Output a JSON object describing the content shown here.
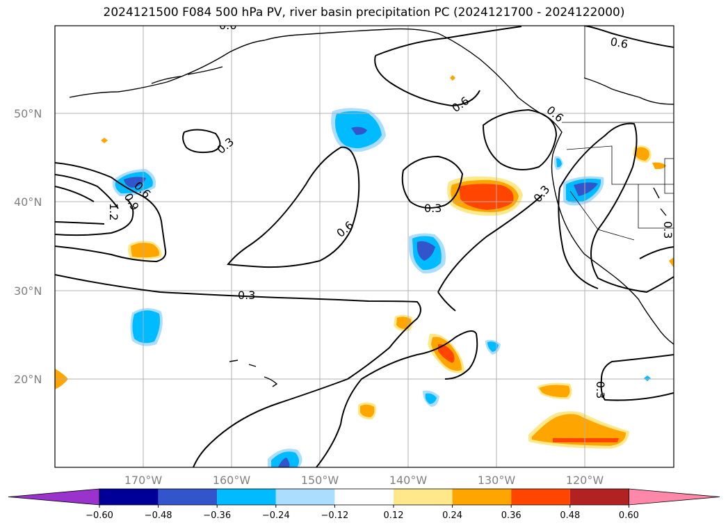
{
  "title": "2024121500 F084 500 hPa PV, river basin precipitation PC (2024121700 - 2024122000)",
  "map": {
    "lon_range": [
      -180,
      -110
    ],
    "lat_range": [
      10,
      60
    ],
    "lat_ticks": [
      {
        "lat": 50,
        "label": "50°N"
      },
      {
        "lat": 40,
        "label": "40°N"
      },
      {
        "lat": 30,
        "label": "30°N"
      },
      {
        "lat": 20,
        "label": "20°N"
      }
    ],
    "lon_ticks": [
      {
        "lon": -170,
        "label": "170°W"
      },
      {
        "lon": -160,
        "label": "160°W"
      },
      {
        "lon": -150,
        "label": "150°W"
      },
      {
        "lon": -140,
        "label": "140°W"
      },
      {
        "lon": -130,
        "label": "130°W"
      },
      {
        "lon": -120,
        "label": "120°W"
      }
    ],
    "gridlines": true,
    "contour_labels": [
      "0.3",
      "0.6",
      "0.9",
      "1.2"
    ]
  },
  "colorbar": {
    "ticks": [
      "−0.60",
      "−0.48",
      "−0.36",
      "−0.24",
      "−0.12",
      "0.12",
      "0.24",
      "0.36",
      "0.48",
      "0.60"
    ],
    "colors": [
      "#9933cc",
      "#000099",
      "#3355cc",
      "#00bbff",
      "#aaddff",
      "#ffffff",
      "#ffe88a",
      "#ffa500",
      "#ff4500",
      "#b22222",
      "#ff88aa"
    ]
  }
}
